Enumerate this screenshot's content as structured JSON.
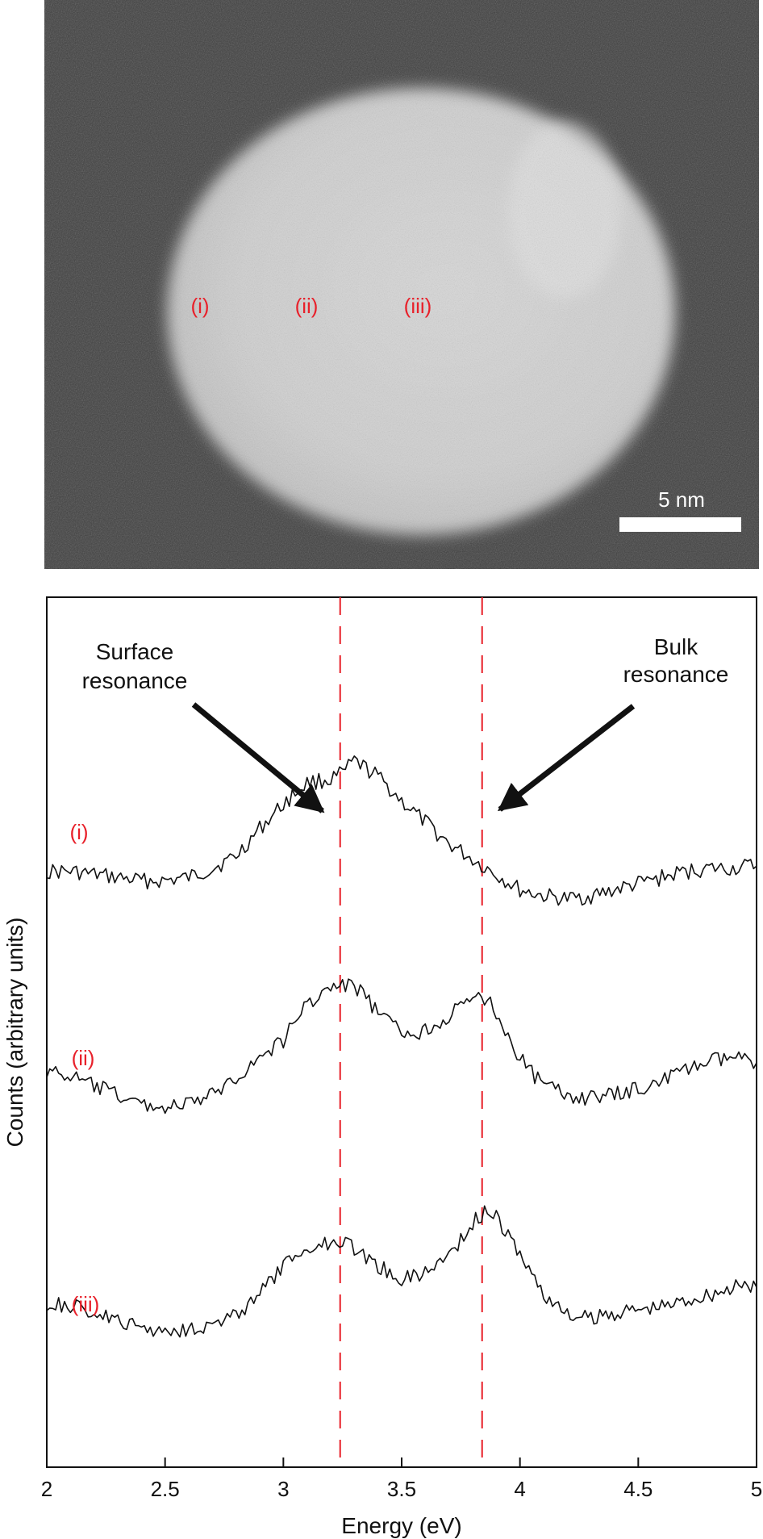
{
  "micrograph": {
    "region_labels": [
      "(i)",
      "(ii)",
      "(iii)"
    ],
    "scale_bar_label": "5 nm",
    "label_color": "#e8202a"
  },
  "chart_data": {
    "type": "line",
    "xlabel": "Energy (eV)",
    "ylabel": "Counts (arbitrary units)",
    "xlim": [
      2,
      5
    ],
    "x_ticks": [
      2,
      2.5,
      3,
      3.5,
      4,
      4.5,
      5
    ],
    "x_tick_labels": [
      "2",
      "2.5",
      "3",
      "3.5",
      "4",
      "4.5",
      "5"
    ],
    "y_ticks_shown": false,
    "grid": false,
    "vlines": [
      {
        "x": 3.24,
        "color": "#e8202a",
        "style": "dashed"
      },
      {
        "x": 3.84,
        "color": "#e8202a",
        "style": "dashed"
      }
    ],
    "annotations": [
      {
        "text": [
          "Surface",
          "resonance"
        ],
        "arrow_to_x": 3.24
      },
      {
        "text": [
          "Bulk",
          "resonance"
        ],
        "arrow_to_x": 3.84
      }
    ],
    "series": [
      {
        "name": "(i)",
        "label_color": "#e8202a",
        "x": [
          2.0,
          2.1,
          2.2,
          2.3,
          2.4,
          2.5,
          2.6,
          2.7,
          2.8,
          2.9,
          3.0,
          3.1,
          3.2,
          3.25,
          3.3,
          3.4,
          3.5,
          3.6,
          3.7,
          3.8,
          3.9,
          4.0,
          4.1,
          4.2,
          4.3,
          4.4,
          4.5,
          4.6,
          4.7,
          4.8,
          4.9,
          5.0
        ],
        "y": [
          0.0,
          0.0,
          -0.1,
          -0.2,
          -0.3,
          -0.3,
          -0.2,
          0.1,
          0.5,
          1.4,
          2.2,
          2.9,
          3.0,
          3.2,
          3.6,
          3.1,
          2.3,
          1.6,
          0.9,
          0.4,
          -0.1,
          -0.6,
          -0.8,
          -0.9,
          -0.8,
          -0.6,
          -0.4,
          -0.2,
          0.0,
          0.1,
          0.1,
          0.2
        ]
      },
      {
        "name": "(ii)",
        "label_color": "#e8202a",
        "x": [
          2.0,
          2.1,
          2.2,
          2.3,
          2.4,
          2.5,
          2.6,
          2.7,
          2.8,
          2.9,
          3.0,
          3.1,
          3.2,
          3.3,
          3.4,
          3.5,
          3.6,
          3.7,
          3.8,
          3.85,
          3.9,
          4.0,
          4.1,
          4.2,
          4.3,
          4.4,
          4.5,
          4.6,
          4.7,
          4.8,
          4.9,
          5.0
        ],
        "y": [
          0.3,
          0.1,
          -0.2,
          -0.5,
          -0.8,
          -0.9,
          -0.8,
          -0.5,
          0.1,
          0.7,
          1.3,
          2.5,
          3.0,
          3.1,
          2.2,
          1.5,
          1.6,
          2.1,
          2.6,
          2.7,
          2.2,
          0.7,
          -0.2,
          -0.5,
          -0.6,
          -0.5,
          -0.3,
          0.0,
          0.3,
          0.6,
          0.7,
          0.6
        ]
      },
      {
        "name": "(iii)",
        "label_color": "#e8202a",
        "x": [
          2.0,
          2.1,
          2.2,
          2.3,
          2.4,
          2.5,
          2.6,
          2.7,
          2.8,
          2.9,
          3.0,
          3.1,
          3.2,
          3.25,
          3.3,
          3.4,
          3.5,
          3.6,
          3.7,
          3.8,
          3.85,
          3.9,
          4.0,
          4.1,
          4.2,
          4.3,
          4.4,
          4.5,
          4.6,
          4.7,
          4.8,
          4.9,
          5.0
        ],
        "y": [
          0.0,
          -0.1,
          -0.3,
          -0.6,
          -0.8,
          -0.9,
          -0.8,
          -0.7,
          -0.4,
          0.3,
          1.2,
          1.8,
          2.0,
          2.1,
          1.8,
          1.2,
          0.8,
          1.0,
          1.6,
          2.6,
          3.0,
          2.8,
          1.6,
          0.3,
          -0.4,
          -0.5,
          -0.3,
          -0.2,
          -0.1,
          0.1,
          0.3,
          0.5,
          0.6
        ]
      }
    ]
  }
}
